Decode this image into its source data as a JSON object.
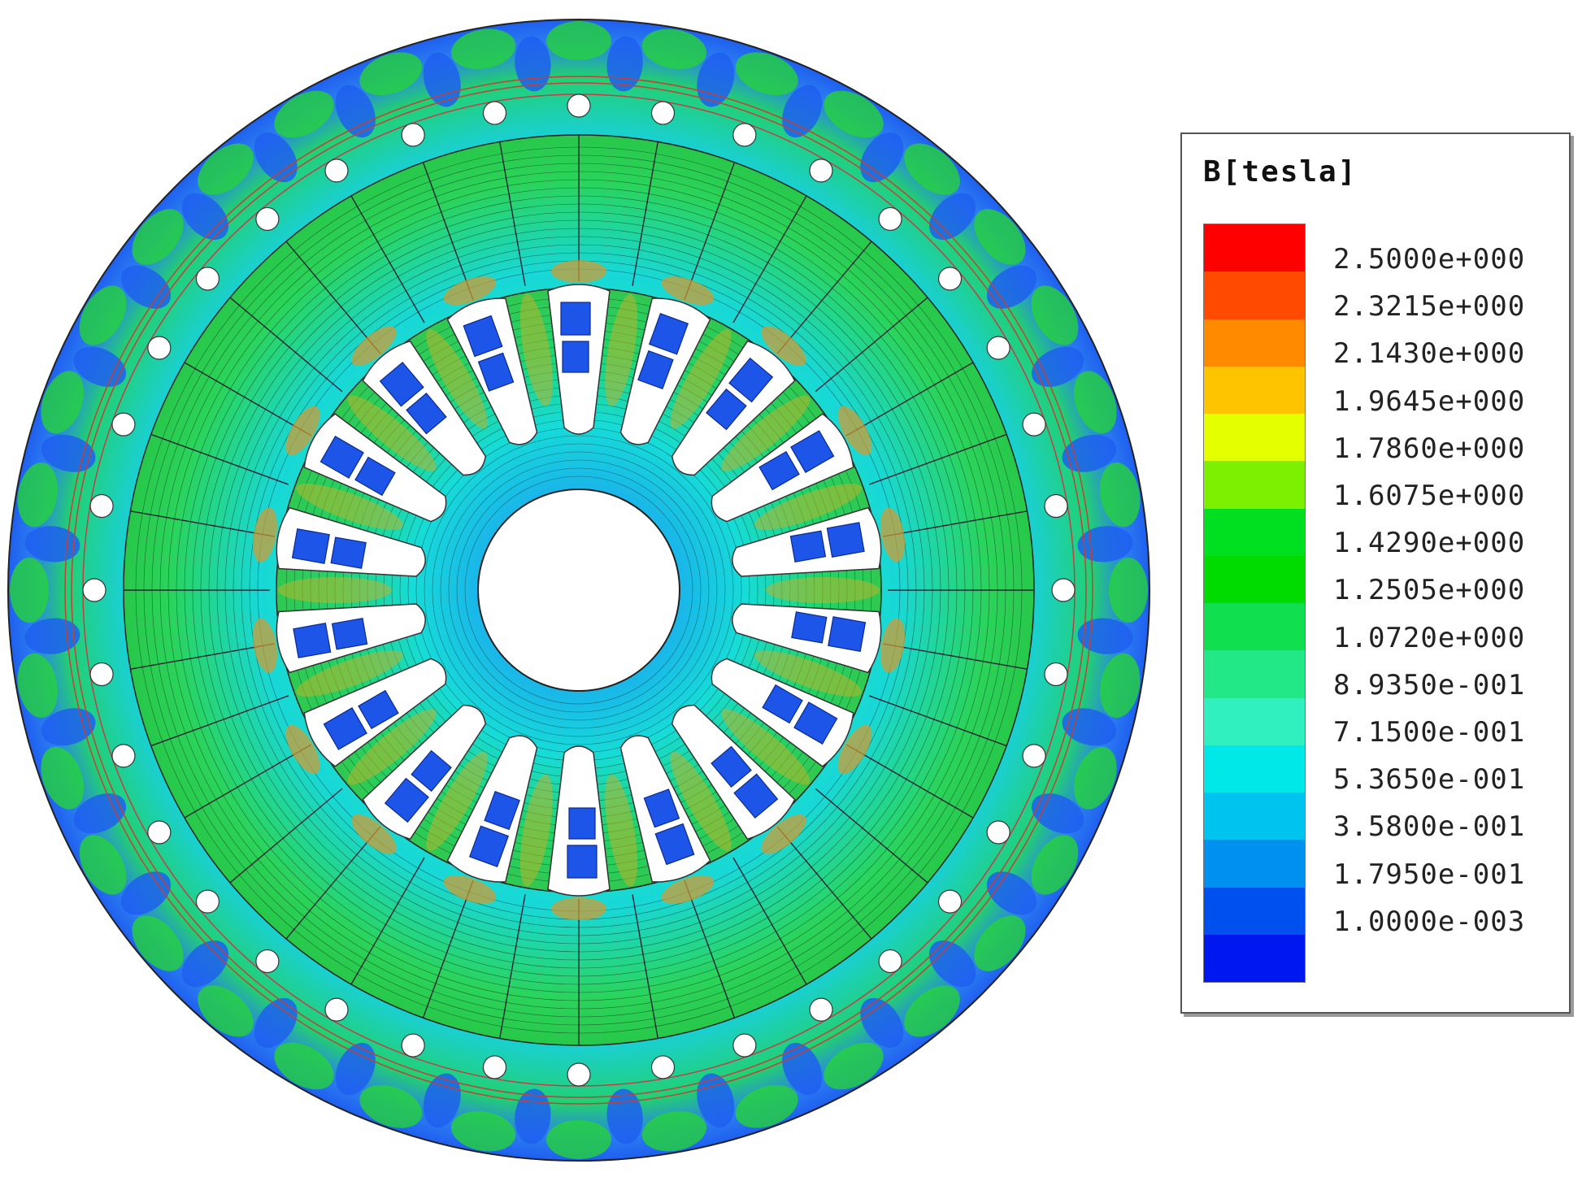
{
  "legend": {
    "title": "B[tesla]",
    "levels": [
      "2.5000e+000",
      "2.3215e+000",
      "2.1430e+000",
      "1.9645e+000",
      "1.7860e+000",
      "1.6075e+000",
      "1.4290e+000",
      "1.2505e+000",
      "1.0720e+000",
      "8.9350e-001",
      "7.1500e-001",
      "5.3650e-001",
      "3.5800e-001",
      "1.7950e-001",
      "1.0000e-003"
    ],
    "colors": [
      "#ff0000",
      "#ff4a00",
      "#ff8a00",
      "#ffc400",
      "#e4ff00",
      "#7cf000",
      "#00e020",
      "#00dc00",
      "#10e050",
      "#22e888",
      "#30f0c0",
      "#00e8e8",
      "#00c4f0",
      "#0090f0",
      "#0050f0",
      "#0018f0"
    ]
  },
  "motor": {
    "stator_slots": 36,
    "rotor_slots": 18,
    "mounting_holes": 36,
    "colors": {
      "low": "#1f5ff0",
      "cyan": "#14d9dc",
      "teal": "#19e39e",
      "green": "#25d33a",
      "yellow": "#b9b52c",
      "orange": "#d99a2c",
      "slot": "#ffffff",
      "coil": "#1d55e8",
      "line": "#111111"
    }
  }
}
